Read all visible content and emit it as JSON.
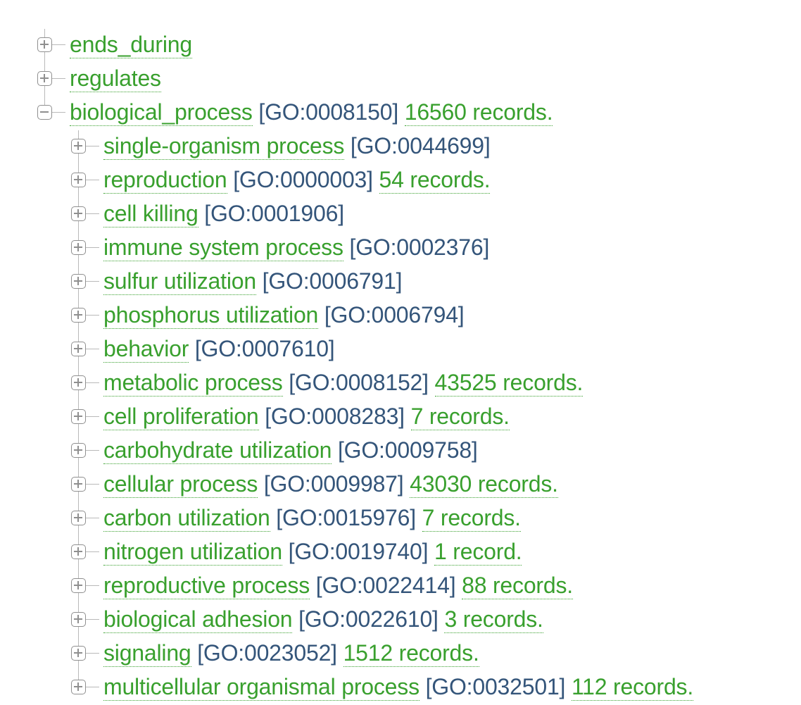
{
  "tree": {
    "top_nodes": [
      {
        "name": "ends_during",
        "expanded": false
      },
      {
        "name": "regulates",
        "expanded": false
      },
      {
        "name": "biological_process",
        "go_id": "[GO:0008150]",
        "records": "16560 records.",
        "expanded": true
      }
    ],
    "children": [
      {
        "name": "single-organism process",
        "go_id": "[GO:0044699]",
        "records": ""
      },
      {
        "name": "reproduction",
        "go_id": "[GO:0000003]",
        "records": "54 records."
      },
      {
        "name": "cell killing",
        "go_id": "[GO:0001906]",
        "records": ""
      },
      {
        "name": "immune system process",
        "go_id": "[GO:0002376]",
        "records": ""
      },
      {
        "name": "sulfur utilization",
        "go_id": "[GO:0006791]",
        "records": ""
      },
      {
        "name": "phosphorus utilization",
        "go_id": "[GO:0006794]",
        "records": ""
      },
      {
        "name": "behavior",
        "go_id": "[GO:0007610]",
        "records": ""
      },
      {
        "name": "metabolic process",
        "go_id": "[GO:0008152]",
        "records": "43525 records."
      },
      {
        "name": "cell proliferation",
        "go_id": "[GO:0008283]",
        "records": "7 records."
      },
      {
        "name": "carbohydrate utilization",
        "go_id": "[GO:0009758]",
        "records": ""
      },
      {
        "name": "cellular process",
        "go_id": "[GO:0009987]",
        "records": "43030 records."
      },
      {
        "name": "carbon utilization",
        "go_id": "[GO:0015976]",
        "records": "7 records."
      },
      {
        "name": "nitrogen utilization",
        "go_id": "[GO:0019740]",
        "records": "1 record."
      },
      {
        "name": "reproductive process",
        "go_id": "[GO:0022414]",
        "records": "88 records."
      },
      {
        "name": "biological adhesion",
        "go_id": "[GO:0022610]",
        "records": "3 records."
      },
      {
        "name": "signaling",
        "go_id": "[GO:0023052]",
        "records": "1512 records."
      },
      {
        "name": "multicellular organismal process",
        "go_id": "[GO:0032501]",
        "records": "112 records."
      }
    ]
  },
  "colors": {
    "term_link": "#39a02e",
    "go_id": "#34557a",
    "connector": "#b9b9b9",
    "toggle_border": "#8f8f8f"
  },
  "icons": {
    "collapsed": "plus-square-icon",
    "expanded": "minus-square-icon"
  }
}
